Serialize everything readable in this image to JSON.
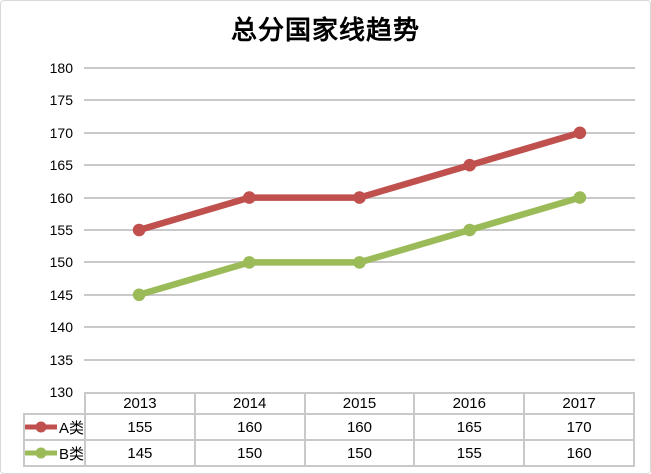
{
  "title": "总分国家线趋势",
  "colors": {
    "series_a": "#C0504D",
    "series_b": "#9BBB59",
    "gridline": "#C9C9C9",
    "table_border": "#C9C9C9",
    "text": "#000000",
    "frame_border": "#D9D9D9"
  },
  "chart_data": {
    "type": "line",
    "title": "总分国家线趋势",
    "categories": [
      "2013",
      "2014",
      "2015",
      "2016",
      "2017"
    ],
    "series": [
      {
        "name": "A类",
        "color": "#C0504D",
        "values": [
          155,
          160,
          160,
          165,
          170
        ]
      },
      {
        "name": "B类",
        "color": "#9BBB59",
        "values": [
          145,
          150,
          150,
          155,
          160
        ]
      }
    ],
    "ylim": [
      130,
      180
    ],
    "ytick_step": 5,
    "yticks": [
      180,
      175,
      170,
      165,
      160,
      155,
      150,
      145,
      140,
      135,
      130
    ],
    "grid": true,
    "marker": "circle",
    "legend_position": "table-left",
    "xlabel": "",
    "ylabel": ""
  }
}
